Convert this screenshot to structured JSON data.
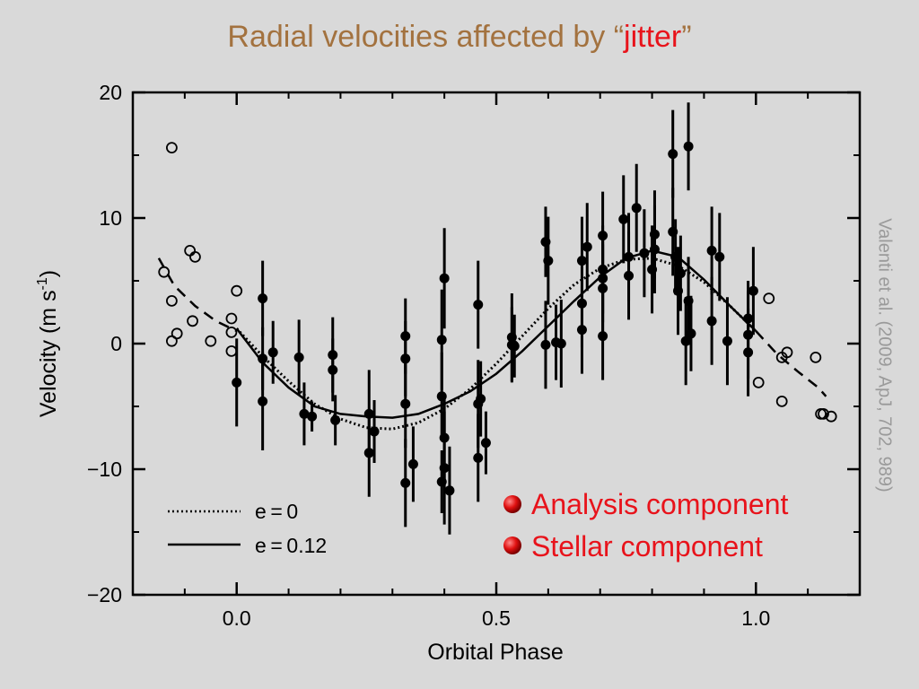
{
  "slide": {
    "title_main": "Radial velocities affected by ",
    "title_quote_open": "“",
    "title_highlight": "jitter",
    "title_quote_close": "”",
    "citation": "Valenti et al. (2009, ApJ, 702, 989)",
    "components": [
      "Analysis component",
      "Stellar component"
    ],
    "colors": {
      "title": "#a3723f",
      "highlight": "#e8131b",
      "citation": "#9a9a9a",
      "background": "#d9d9d9"
    }
  },
  "chart_data": {
    "type": "scatter",
    "xlabel": "Orbital Phase",
    "ylabel_base": "Velocity (m s",
    "ylabel_sup": "-1",
    "ylabel_close": ")",
    "xlim": [
      -0.2,
      1.2
    ],
    "ylim": [
      -20,
      20
    ],
    "xticks": [
      0.0,
      0.5,
      1.0
    ],
    "xtick_labels": [
      "0.0",
      "0.5",
      "1.0"
    ],
    "yticks": [
      -20,
      -10,
      0,
      10,
      20
    ],
    "ytick_labels": [
      "−20",
      "−10",
      "0",
      "10",
      "20"
    ],
    "grid": false,
    "legend": {
      "position": "bottom-left",
      "entries": [
        {
          "label": "e = 0",
          "style": "dotted"
        },
        {
          "label": "e = 0.12",
          "style": "solid"
        }
      ]
    },
    "series": [
      {
        "marker": "filled-circle",
        "error_bars": true,
        "points": [
          [
            0.0,
            -3.1,
            3.5
          ],
          [
            0.05,
            3.6,
            3.0
          ],
          [
            0.05,
            -1.2,
            2.5
          ],
          [
            0.05,
            -4.6,
            3.9
          ],
          [
            0.07,
            -0.7,
            2.5
          ],
          [
            0.12,
            -1.1,
            3.0
          ],
          [
            0.13,
            -5.6,
            2.5
          ],
          [
            0.145,
            -5.8,
            1.2
          ],
          [
            0.185,
            -0.9,
            3.0
          ],
          [
            0.185,
            -2.1,
            2.5
          ],
          [
            0.19,
            -6.1,
            2.0
          ],
          [
            0.255,
            -5.6,
            3.5
          ],
          [
            0.255,
            -8.7,
            3.5
          ],
          [
            0.265,
            -7.0,
            2.5
          ],
          [
            0.325,
            0.6,
            3.0
          ],
          [
            0.325,
            -1.2,
            3.0
          ],
          [
            0.325,
            -4.8,
            3.5
          ],
          [
            0.325,
            -11.1,
            3.5
          ],
          [
            0.34,
            -9.6,
            3.0
          ],
          [
            0.395,
            0.3,
            4.0
          ],
          [
            0.395,
            -4.2,
            3.5
          ],
          [
            0.395,
            -11.0,
            2.5
          ],
          [
            0.4,
            5.2,
            4.0
          ],
          [
            0.4,
            -7.5,
            3.5
          ],
          [
            0.4,
            -9.9,
            4.5
          ],
          [
            0.41,
            -11.7,
            3.5
          ],
          [
            0.465,
            3.1,
            3.5
          ],
          [
            0.465,
            -4.8,
            3.5
          ],
          [
            0.465,
            -9.1,
            3.5
          ],
          [
            0.47,
            -4.4,
            3.0
          ],
          [
            0.48,
            -7.9,
            2.5
          ],
          [
            0.53,
            0.5,
            3.5
          ],
          [
            0.53,
            -0.1,
            3.0
          ],
          [
            0.535,
            -0.2,
            2.5
          ],
          [
            0.595,
            8.1,
            2.8
          ],
          [
            0.595,
            -0.1,
            3.5
          ],
          [
            0.6,
            6.6,
            3.5
          ],
          [
            0.615,
            0.1,
            3.0
          ],
          [
            0.625,
            0.0,
            3.5
          ],
          [
            0.665,
            6.6,
            3.5
          ],
          [
            0.665,
            3.2,
            3.5
          ],
          [
            0.665,
            1.1,
            3.5
          ],
          [
            0.675,
            7.7,
            3.5
          ],
          [
            0.705,
            8.6,
            3.5
          ],
          [
            0.705,
            0.6,
            3.5
          ],
          [
            0.705,
            5.2,
            3.5
          ],
          [
            0.705,
            5.9,
            3.5
          ],
          [
            0.705,
            4.4,
            3.5
          ],
          [
            0.745,
            9.9,
            3.5
          ],
          [
            0.755,
            6.9,
            3.5
          ],
          [
            0.755,
            5.4,
            3.5
          ],
          [
            0.77,
            10.8,
            3.5
          ],
          [
            0.785,
            7.2,
            3.5
          ],
          [
            0.8,
            5.9,
            3.5
          ],
          [
            0.805,
            8.7,
            3.5
          ],
          [
            0.805,
            7.5,
            3.5
          ],
          [
            0.84,
            15.1,
            3.5
          ],
          [
            0.84,
            8.9,
            3.5
          ],
          [
            0.845,
            6.9,
            3.0
          ],
          [
            0.85,
            4.2,
            3.5
          ],
          [
            0.855,
            5.6,
            3.0
          ],
          [
            0.865,
            0.2,
            3.5
          ],
          [
            0.87,
            15.7,
            3.5
          ],
          [
            0.87,
            3.4,
            3.5
          ],
          [
            0.875,
            0.8,
            3.0
          ],
          [
            0.915,
            7.4,
            3.5
          ],
          [
            0.915,
            1.8,
            3.5
          ],
          [
            0.93,
            6.9,
            3.5
          ],
          [
            0.945,
            0.2,
            3.5
          ],
          [
            0.985,
            2.0,
            3.0
          ],
          [
            0.985,
            0.7,
            3.5
          ],
          [
            0.985,
            -0.7,
            3.5
          ],
          [
            0.995,
            4.2,
            3.5
          ]
        ]
      },
      {
        "marker": "open-circle",
        "error_bars": false,
        "points": [
          [
            -0.125,
            15.6
          ],
          [
            -0.14,
            5.7
          ],
          [
            -0.125,
            3.4
          ],
          [
            -0.125,
            0.2
          ],
          [
            -0.115,
            0.8
          ],
          [
            -0.09,
            7.4
          ],
          [
            -0.08,
            6.9
          ],
          [
            -0.085,
            1.8
          ],
          [
            -0.05,
            0.2
          ],
          [
            -0.01,
            0.9
          ],
          [
            -0.01,
            2.0
          ],
          [
            0.0,
            4.2
          ],
          [
            -0.01,
            -0.6
          ],
          [
            1.005,
            -3.1
          ],
          [
            1.025,
            3.6
          ],
          [
            1.05,
            -1.1
          ],
          [
            1.05,
            -4.6
          ],
          [
            1.06,
            -0.7
          ],
          [
            1.115,
            -1.1
          ],
          [
            1.125,
            -5.6
          ],
          [
            1.13,
            -5.6
          ],
          [
            1.145,
            -5.8
          ]
        ]
      }
    ],
    "curves": [
      {
        "name": "e = 0",
        "style": "dotted",
        "points": [
          [
            0.0,
            1.2
          ],
          [
            0.05,
            -1.0
          ],
          [
            0.1,
            -3.0
          ],
          [
            0.15,
            -4.8
          ],
          [
            0.2,
            -6.0
          ],
          [
            0.25,
            -6.7
          ],
          [
            0.3,
            -6.8
          ],
          [
            0.35,
            -6.3
          ],
          [
            0.4,
            -5.2
          ],
          [
            0.45,
            -3.6
          ],
          [
            0.5,
            -1.6
          ],
          [
            0.55,
            0.6
          ],
          [
            0.6,
            2.8
          ],
          [
            0.65,
            4.7
          ],
          [
            0.7,
            6.0
          ],
          [
            0.75,
            6.7
          ],
          [
            0.8,
            6.8
          ],
          [
            0.85,
            6.2
          ],
          [
            0.9,
            4.9
          ],
          [
            0.95,
            3.0
          ],
          [
            1.0,
            1.0
          ]
        ]
      },
      {
        "name": "e = 0.12",
        "style": "solid",
        "points": [
          [
            0.0,
            1.2
          ],
          [
            0.05,
            -1.5
          ],
          [
            0.1,
            -3.5
          ],
          [
            0.15,
            -5.0
          ],
          [
            0.2,
            -5.6
          ],
          [
            0.25,
            -5.8
          ],
          [
            0.3,
            -5.9
          ],
          [
            0.35,
            -5.6
          ],
          [
            0.4,
            -4.8
          ],
          [
            0.45,
            -3.8
          ],
          [
            0.5,
            -2.4
          ],
          [
            0.55,
            -0.6
          ],
          [
            0.6,
            1.4
          ],
          [
            0.65,
            3.4
          ],
          [
            0.7,
            5.3
          ],
          [
            0.75,
            6.8
          ],
          [
            0.8,
            7.4
          ],
          [
            0.85,
            6.9
          ],
          [
            0.9,
            5.1
          ],
          [
            0.95,
            3.0
          ],
          [
            1.0,
            1.0
          ]
        ]
      },
      {
        "name": "",
        "style": "dashed",
        "points": [
          [
            -0.15,
            6.8
          ],
          [
            -0.12,
            4.6
          ],
          [
            -0.08,
            3.0
          ],
          [
            -0.04,
            1.8
          ],
          [
            0.0,
            1.0
          ]
        ],
        "points_right": [
          [
            1.0,
            1.0
          ],
          [
            1.04,
            -0.8
          ],
          [
            1.08,
            -2.2
          ],
          [
            1.12,
            -3.5
          ],
          [
            1.135,
            -4.2
          ]
        ]
      }
    ]
  }
}
